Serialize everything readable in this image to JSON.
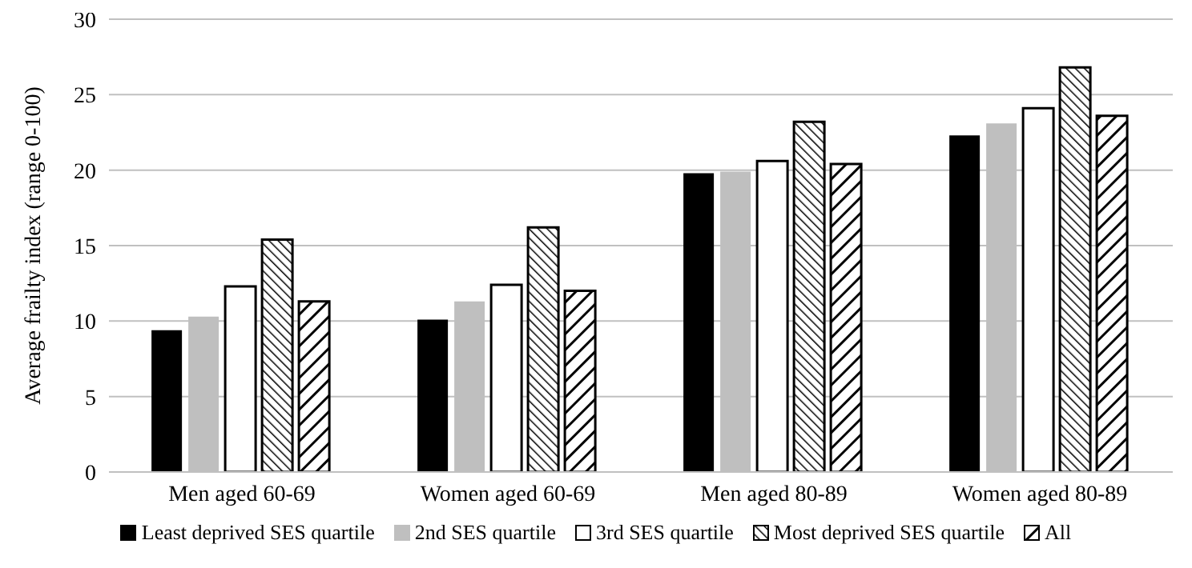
{
  "chart_data": {
    "type": "bar",
    "ylabel": "Average frailty index (range 0-100)",
    "categories": [
      "Men aged 60-69",
      "Women aged 60-69",
      "Men aged 80-89",
      "Women aged 80-89"
    ],
    "series": [
      {
        "name": "Least deprived SES quartile",
        "color": "#000000",
        "values": [
          9.4,
          10.1,
          19.8,
          22.3
        ]
      },
      {
        "name": "2nd SES quartile",
        "color": "#bfbfbf",
        "values": [
          10.3,
          11.3,
          19.9,
          23.1
        ]
      },
      {
        "name": "3rd SES quartile",
        "color": "#ffffff",
        "values": [
          12.3,
          12.4,
          20.6,
          24.1
        ]
      },
      {
        "name": "Most deprived SES quartile",
        "color": "#000000",
        "values": [
          15.4,
          16.2,
          23.2,
          26.8
        ]
      },
      {
        "name": "All",
        "color": "#000000",
        "values": [
          11.3,
          12.0,
          20.4,
          23.6
        ]
      }
    ],
    "ylim": [
      0,
      30
    ],
    "yticks": [
      0,
      5,
      10,
      15,
      20,
      25,
      30
    ],
    "grid": "y",
    "legend": "bottom"
  }
}
